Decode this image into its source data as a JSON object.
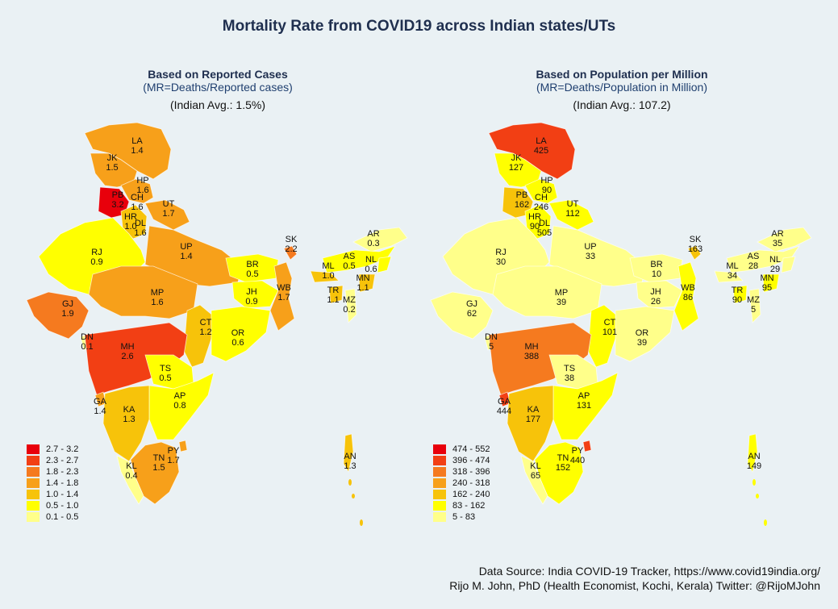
{
  "title": "Mortality Rate from COVID19 across Indian states/UTs",
  "panels": [
    {
      "heading": "Based on Reported Cases",
      "subheading": "(MR=Deaths/Reported cases)",
      "average": "(Indian Avg.:  1.5%)",
      "legend": [
        {
          "range": "2.7 - 3.2",
          "color": "#e8000b"
        },
        {
          "range": "2.3 - 2.7",
          "color": "#f23f14"
        },
        {
          "range": "1.8 - 2.3",
          "color": "#f57a1f"
        },
        {
          "range": "1.4 - 1.8",
          "color": "#f7a01a"
        },
        {
          "range": "1.0 - 1.4",
          "color": "#f7c30a"
        },
        {
          "range": "0.5 - 1.0",
          "color": "#ffff00"
        },
        {
          "range": "0.1 - 0.5",
          "color": "#ffff8a"
        }
      ],
      "states": [
        {
          "code": "LA",
          "value": "1.4"
        },
        {
          "code": "JK",
          "value": "1.5"
        },
        {
          "code": "HP",
          "value": "1.6"
        },
        {
          "code": "PB",
          "value": "3.2"
        },
        {
          "code": "CH",
          "value": "1.6"
        },
        {
          "code": "UT",
          "value": "1.7"
        },
        {
          "code": "HR",
          "value": "1.0"
        },
        {
          "code": "DL",
          "value": "1.6"
        },
        {
          "code": "RJ",
          "value": "0.9"
        },
        {
          "code": "UP",
          "value": "1.4"
        },
        {
          "code": "SK",
          "value": "2.2"
        },
        {
          "code": "AR",
          "value": "0.3"
        },
        {
          "code": "AS",
          "value": "0.5"
        },
        {
          "code": "NL",
          "value": "0.6"
        },
        {
          "code": "BR",
          "value": "0.5"
        },
        {
          "code": "ML",
          "value": "1.0"
        },
        {
          "code": "MN",
          "value": "1.1"
        },
        {
          "code": "TR",
          "value": "1.1"
        },
        {
          "code": "MZ",
          "value": "0.2"
        },
        {
          "code": "GJ",
          "value": "1.9"
        },
        {
          "code": "MP",
          "value": "1.6"
        },
        {
          "code": "JH",
          "value": "0.9"
        },
        {
          "code": "WB",
          "value": "1.7"
        },
        {
          "code": "DN",
          "value": "0.1"
        },
        {
          "code": "CT",
          "value": "1.2"
        },
        {
          "code": "OR",
          "value": "0.6"
        },
        {
          "code": "MH",
          "value": "2.6"
        },
        {
          "code": "TS",
          "value": "0.5"
        },
        {
          "code": "GA",
          "value": "1.4"
        },
        {
          "code": "AP",
          "value": "0.8"
        },
        {
          "code": "KA",
          "value": "1.3"
        },
        {
          "code": "PY",
          "value": "1.7"
        },
        {
          "code": "TN",
          "value": "1.5"
        },
        {
          "code": "KL",
          "value": "0.4"
        },
        {
          "code": "AN",
          "value": "1.3"
        }
      ]
    },
    {
      "heading": "Based on Population per Million",
      "subheading": "(MR=Deaths/Population in Million)",
      "average": "(Indian Avg.: 107.2)",
      "legend": [
        {
          "range": "474 - 552",
          "color": "#e8000b"
        },
        {
          "range": "396 - 474",
          "color": "#f23f14"
        },
        {
          "range": "318 - 396",
          "color": "#f57a1f"
        },
        {
          "range": "240 - 318",
          "color": "#f7a01a"
        },
        {
          "range": "162 - 240",
          "color": "#f7c30a"
        },
        {
          "range": "83 - 162",
          "color": "#ffff00"
        },
        {
          "range": "5 - 83",
          "color": "#ffff8a"
        }
      ],
      "states": [
        {
          "code": "LA",
          "value": "425"
        },
        {
          "code": "JK",
          "value": "127"
        },
        {
          "code": "HP",
          "value": "90"
        },
        {
          "code": "PB",
          "value": "162"
        },
        {
          "code": "CH",
          "value": "246"
        },
        {
          "code": "UT",
          "value": "112"
        },
        {
          "code": "HR",
          "value": "90"
        },
        {
          "code": "DL",
          "value": "505"
        },
        {
          "code": "RJ",
          "value": "30"
        },
        {
          "code": "UP",
          "value": "33"
        },
        {
          "code": "SK",
          "value": "163"
        },
        {
          "code": "AR",
          "value": "35"
        },
        {
          "code": "AS",
          "value": "28"
        },
        {
          "code": "NL",
          "value": "29"
        },
        {
          "code": "BR",
          "value": "10"
        },
        {
          "code": "ML",
          "value": "34"
        },
        {
          "code": "MN",
          "value": "95"
        },
        {
          "code": "TR",
          "value": "90"
        },
        {
          "code": "MZ",
          "value": "5"
        },
        {
          "code": "GJ",
          "value": "62"
        },
        {
          "code": "MP",
          "value": "39"
        },
        {
          "code": "JH",
          "value": "26"
        },
        {
          "code": "WB",
          "value": "86"
        },
        {
          "code": "DN",
          "value": "5"
        },
        {
          "code": "CT",
          "value": "101"
        },
        {
          "code": "OR",
          "value": "39"
        },
        {
          "code": "MH",
          "value": "388"
        },
        {
          "code": "TS",
          "value": "38"
        },
        {
          "code": "GA",
          "value": "444"
        },
        {
          "code": "AP",
          "value": "131"
        },
        {
          "code": "KA",
          "value": "177"
        },
        {
          "code": "PY",
          "value": "440"
        },
        {
          "code": "TN",
          "value": "152"
        },
        {
          "code": "KL",
          "value": "65"
        },
        {
          "code": "AN",
          "value": "149"
        }
      ]
    }
  ],
  "footer": {
    "source": "Data Source: India COVID-19 Tracker, https://www.covid19india.org/",
    "credit": "Rijo M. John, PhD (Health Economist, Kochi, Kerala) Twitter: @RijoMJohn"
  }
}
